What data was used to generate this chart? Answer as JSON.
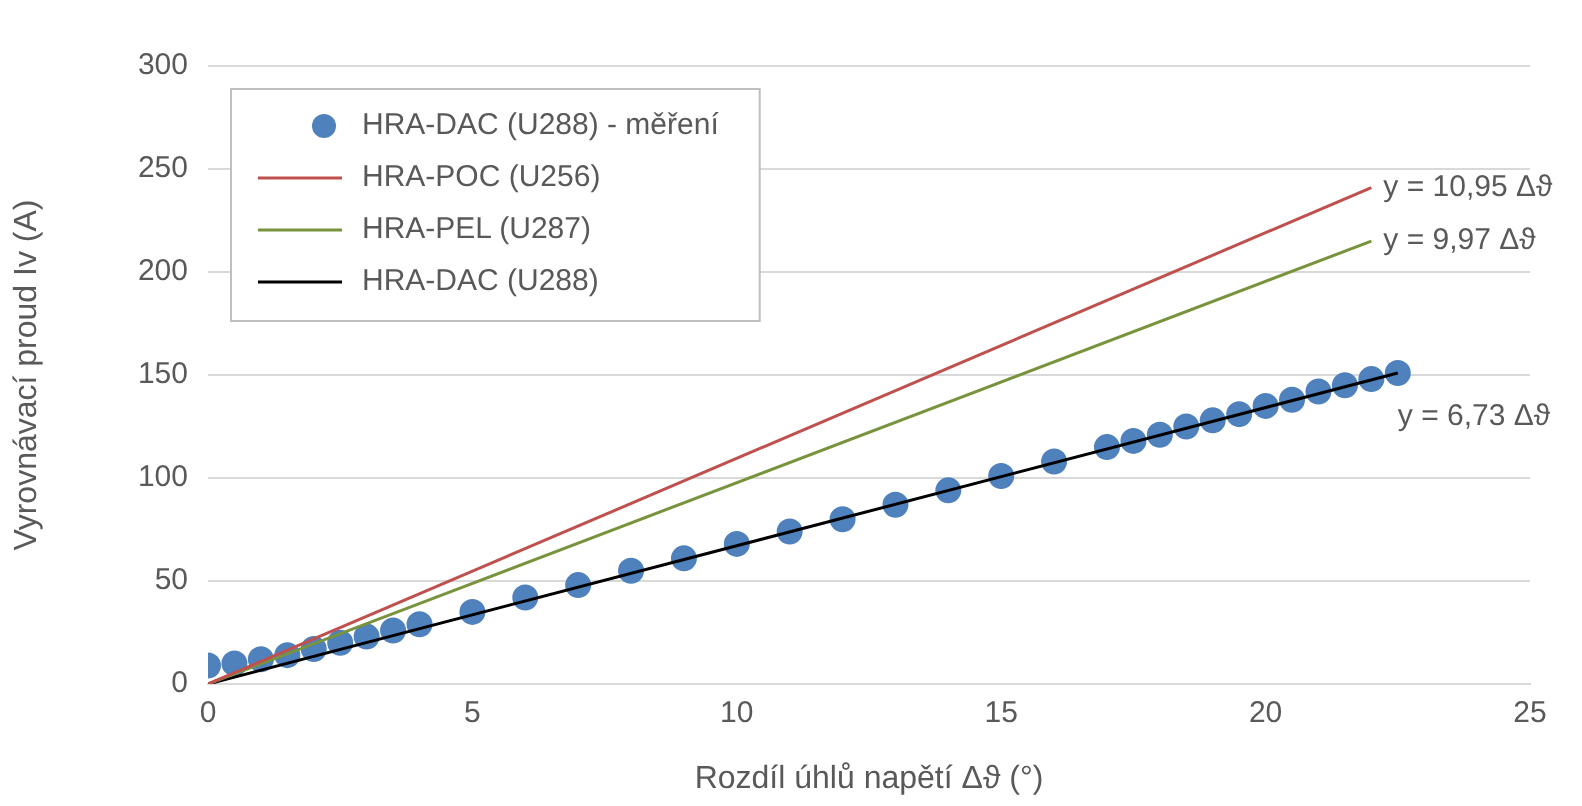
{
  "chart_data": {
    "type": "scatter",
    "xlabel": "Rozdíl úhlů napětí Δϑ (°)",
    "ylabel": "Vyrovnávací proud Iv (A)",
    "xlim": [
      0,
      25
    ],
    "xticks": [
      0,
      5,
      10,
      15,
      20,
      25
    ],
    "ylim": [
      0,
      300
    ],
    "yticks": [
      0,
      50,
      100,
      150,
      200,
      250,
      300
    ],
    "grid": "y",
    "legend": "top left",
    "series": [
      {
        "name": "HRA-DAC (U288) - měření",
        "color": "#4f81bd",
        "marker": "circle",
        "x": [
          0,
          0.5,
          1,
          1.5,
          2,
          2.5,
          3,
          3.5,
          4,
          5,
          6,
          7,
          8,
          9,
          10,
          11,
          12,
          13,
          14,
          15,
          16,
          17,
          17.5,
          18,
          18.5,
          19,
          19.5,
          20,
          20.5,
          21,
          21.5,
          22,
          22.5
        ],
        "values": [
          9,
          10,
          12,
          14,
          17,
          20,
          23,
          26,
          29,
          35,
          42,
          48,
          55,
          61,
          68,
          74,
          80,
          87,
          94,
          101,
          108,
          115,
          118,
          121,
          125,
          128,
          131,
          135,
          138,
          142,
          145,
          148,
          151
        ]
      },
      {
        "name": "HRA-POC (U256)",
        "type": "line",
        "color": "#c0504d",
        "x": [
          0,
          22
        ],
        "values": [
          0,
          241
        ]
      },
      {
        "name": "HRA-PEL (U287)",
        "type": "line",
        "color": "#77933c",
        "x": [
          0,
          22
        ],
        "values": [
          0,
          215
        ]
      },
      {
        "name": "HRA-DAC (U288)",
        "type": "line",
        "color": "#000000",
        "x": [
          0,
          22.5
        ],
        "values": [
          0,
          151
        ]
      }
    ],
    "annotations": [
      "y = 10,95 Δϑ",
      "y = 9,97 Δϑ",
      "y = 6,73 Δϑ"
    ]
  }
}
